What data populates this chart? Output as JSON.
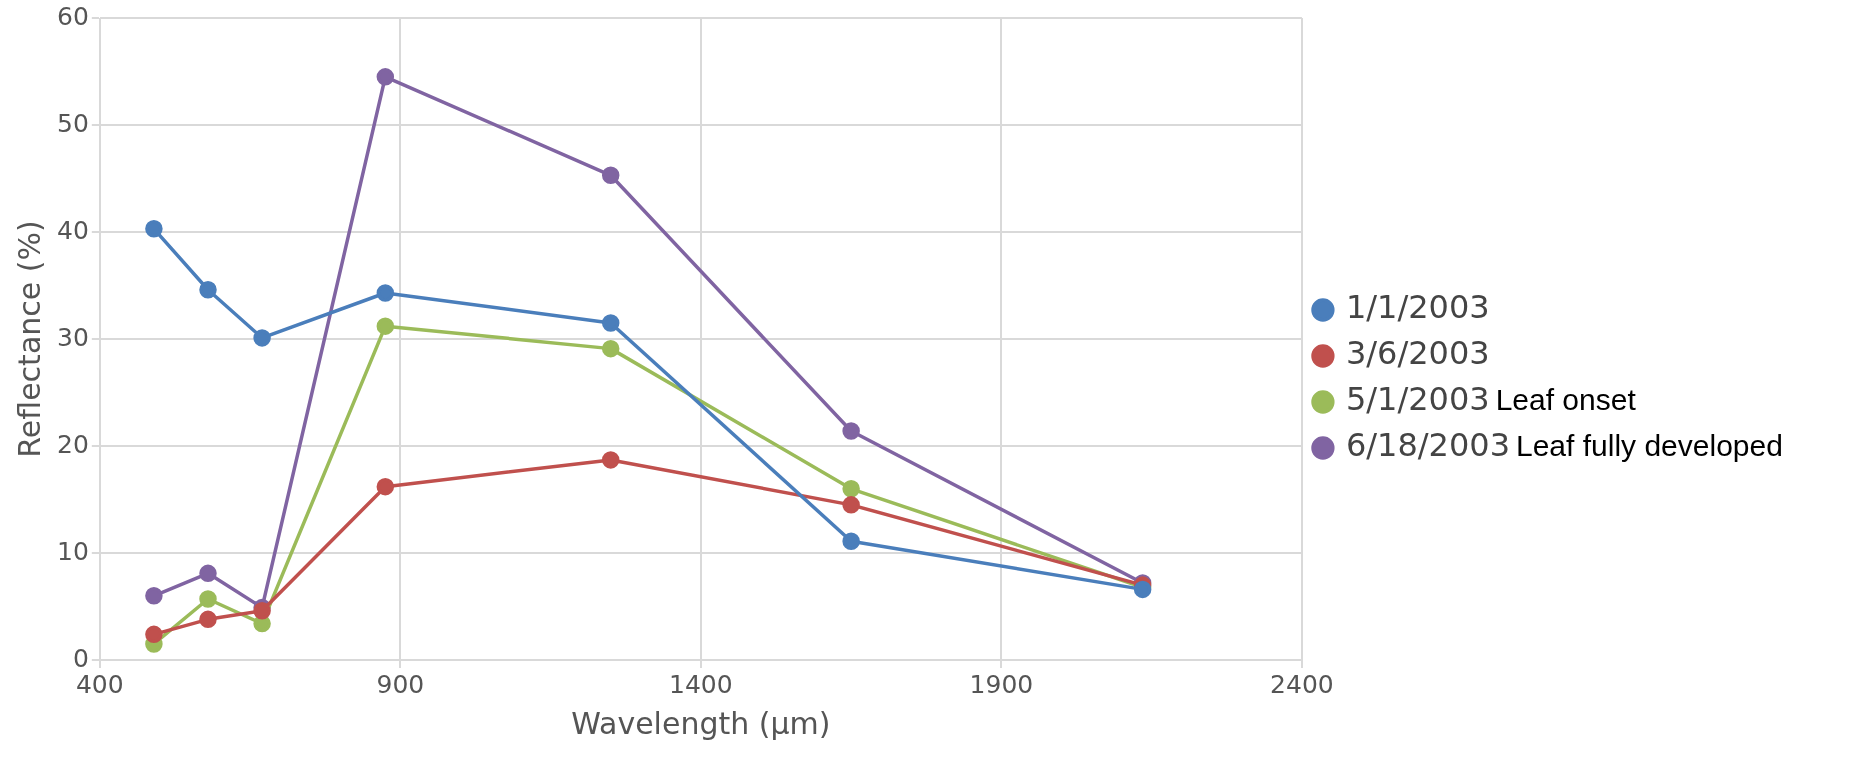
{
  "chart_data": {
    "type": "line",
    "xlabel": "Wavelength (µm)",
    "ylabel": "Reflectance (%)",
    "x": [
      490,
      580,
      670,
      875,
      1250,
      1650,
      2135
    ],
    "series": [
      {
        "name": "1/1/2003",
        "color": "#4a7ebb",
        "values": [
          40.3,
          34.6,
          30.1,
          34.3,
          31.5,
          11.1,
          6.6
        ]
      },
      {
        "name": "3/6/2003",
        "color": "#c0504d",
        "values": [
          2.4,
          3.8,
          4.6,
          16.2,
          18.7,
          14.5,
          7.0
        ]
      },
      {
        "name": "5/1/2003",
        "color": "#9bbb59",
        "values": [
          1.5,
          5.7,
          3.4,
          31.2,
          29.1,
          16.0,
          6.8
        ]
      },
      {
        "name": "6/18/2003",
        "color": "#8064a2",
        "values": [
          6.0,
          8.1,
          4.9,
          54.5,
          45.3,
          21.4,
          7.2
        ]
      }
    ],
    "annotations": [
      "Leaf onset",
      "Leaf fully developed"
    ],
    "xlim": [
      400,
      2400
    ],
    "xticks": [
      400,
      900,
      1400,
      1900,
      2400
    ],
    "ylim": [
      0,
      60
    ],
    "yticks": [
      0,
      10,
      20,
      30,
      40,
      50,
      60
    ],
    "grid": true,
    "legend": "right",
    "marker": "circle",
    "line_style": "solid"
  }
}
